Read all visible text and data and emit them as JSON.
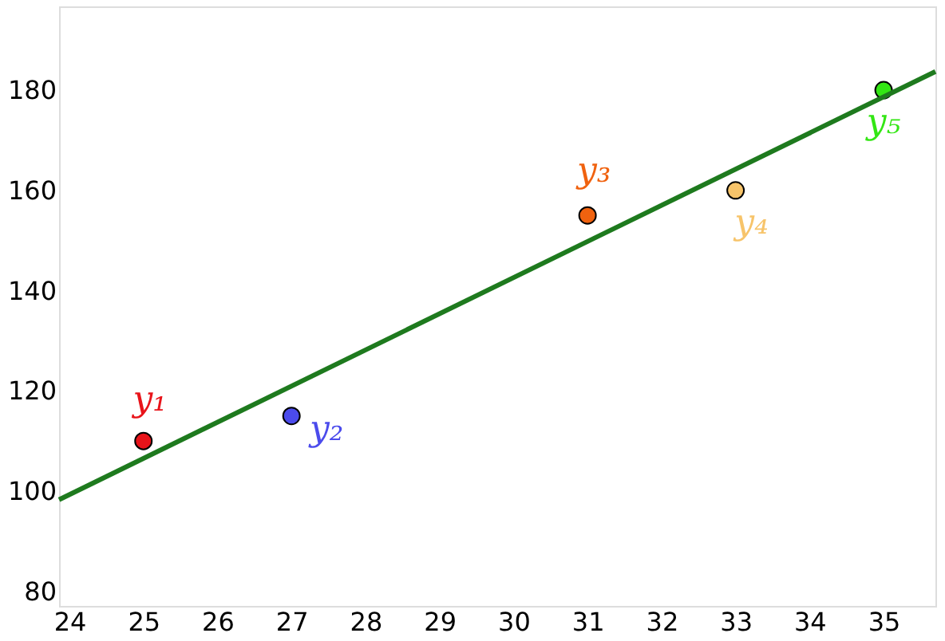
{
  "chart_data": {
    "type": "scatter",
    "xlim": [
      23.86,
      35.7
    ],
    "ylim": [
      77.1,
      196.7
    ],
    "xticks": [
      24,
      25,
      26,
      27,
      28,
      29,
      30,
      31,
      32,
      33,
      34,
      35
    ],
    "yticks": [
      80,
      100,
      120,
      140,
      160,
      180
    ],
    "grid": false,
    "marker": "circle",
    "series": [
      {
        "name": "y₁",
        "color": "#e8141a",
        "x": [
          25
        ],
        "values": [
          110
        ]
      },
      {
        "name": "y₂",
        "color": "#4b4bec",
        "x": [
          27
        ],
        "values": [
          115
        ]
      },
      {
        "name": "y₃",
        "color": "#f0620f",
        "x": [
          31
        ],
        "values": [
          155
        ]
      },
      {
        "name": "y₄",
        "color": "#f7c46a",
        "x": [
          33
        ],
        "values": [
          160
        ]
      },
      {
        "name": "y₅",
        "color": "#33e614",
        "x": [
          35
        ],
        "values": [
          180
        ]
      },
      {
        "type": "line",
        "color": "#1e7a1e",
        "line_style": "solid",
        "marker": "none",
        "x": [
          23.86,
          35.7
        ],
        "values": [
          98.3,
          183.7
        ]
      }
    ]
  }
}
